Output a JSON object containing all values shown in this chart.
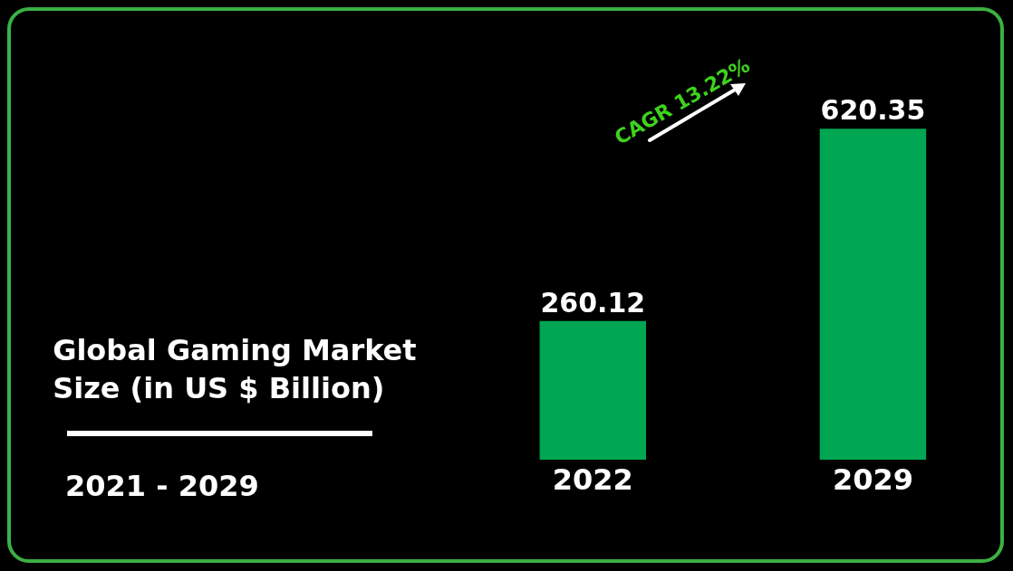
{
  "chart_data": {
    "type": "bar",
    "title": "Global Gaming Market Size (in US $ Billion)",
    "subtitle": "2021 - 2029",
    "categories": [
      "2022",
      "2029"
    ],
    "values": [
      260.12,
      620.35
    ],
    "color": "#00a651",
    "data_labels": true,
    "tick_labels": "x",
    "annotations": [
      "CAGR 13.22%"
    ]
  }
}
